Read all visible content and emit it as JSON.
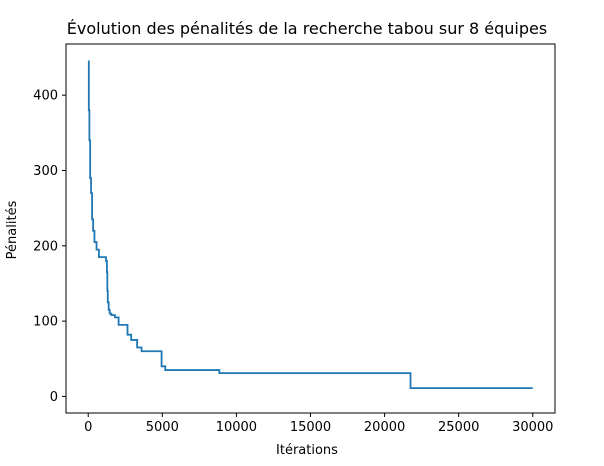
{
  "chart_data": {
    "type": "line",
    "title": "Évolution des pénalités de la recherche tabou sur 8 équipes",
    "xlabel": "Itérations",
    "ylabel": "Pénalités",
    "xlim": [
      -1500,
      31500
    ],
    "ylim": [
      -22,
      468
    ],
    "xticks": [
      0,
      5000,
      10000,
      15000,
      20000,
      25000,
      30000
    ],
    "xtick_labels": [
      "0",
      "5000",
      "10000",
      "15000",
      "20000",
      "25000",
      "30000"
    ],
    "yticks": [
      0,
      100,
      200,
      300,
      400
    ],
    "ytick_labels": [
      "0",
      "100",
      "200",
      "300",
      "400"
    ],
    "grid": false,
    "legend": "none",
    "series": [
      {
        "color": "#1f77b4",
        "step": "post",
        "x": [
          0,
          40,
          80,
          130,
          190,
          260,
          330,
          420,
          560,
          720,
          1200,
          1260,
          1290,
          1320,
          1380,
          1450,
          1560,
          1800,
          2050,
          2650,
          2900,
          3300,
          3600,
          4950,
          5200,
          8850,
          21750,
          30000
        ],
        "values": [
          445,
          380,
          340,
          290,
          270,
          235,
          220,
          205,
          195,
          185,
          180,
          165,
          140,
          125,
          115,
          110,
          108,
          105,
          95,
          82,
          75,
          65,
          60,
          40,
          35,
          31,
          11,
          11
        ]
      }
    ]
  }
}
